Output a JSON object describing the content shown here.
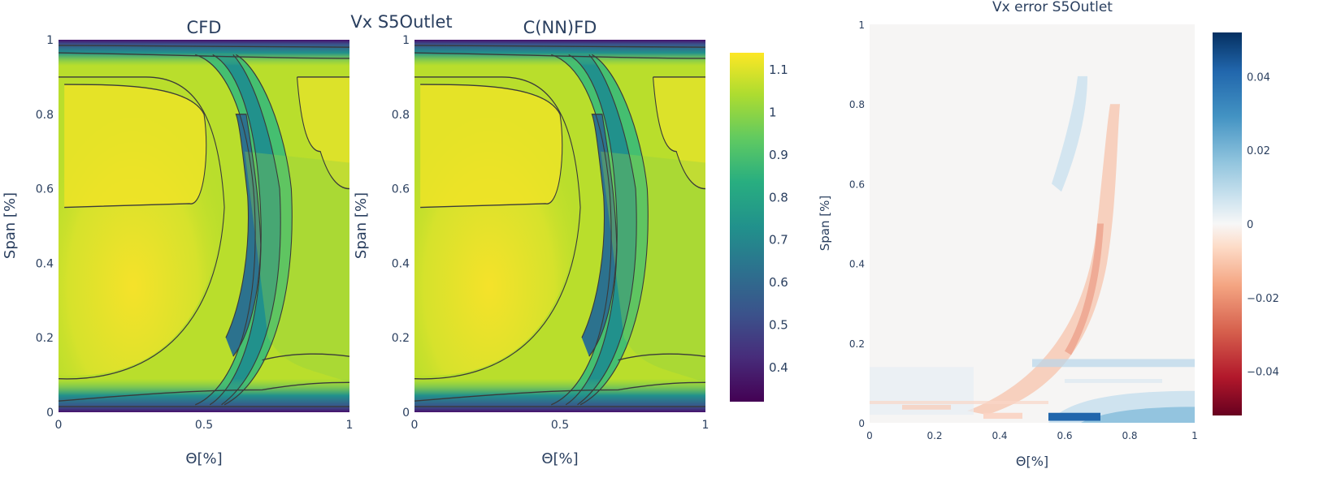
{
  "figure_title": "Vx S5Outlet",
  "chart_data": [
    {
      "type": "heatmap",
      "title": "CFD",
      "xlabel": "Θ[%]",
      "ylabel": "Span [%]",
      "xlim": [
        0,
        1
      ],
      "ylim": [
        0,
        1
      ],
      "x_ticks": [
        "0",
        "0.5",
        "1"
      ],
      "y_ticks": [
        "0",
        "0.2",
        "0.4",
        "0.6",
        "0.8",
        "1"
      ],
      "field": "Vx",
      "colormap": "viridis",
      "contours": true
    },
    {
      "type": "heatmap",
      "title": "C(NN)FD",
      "xlabel": "Θ[%]",
      "ylabel": "Span [%]",
      "xlim": [
        0,
        1
      ],
      "ylim": [
        0,
        1
      ],
      "x_ticks": [
        "0",
        "0.5",
        "1"
      ],
      "y_ticks": [
        "0",
        "0.2",
        "0.4",
        "0.6",
        "0.8",
        "1"
      ],
      "field": "Vx",
      "colormap": "viridis",
      "contours": true
    },
    {
      "type": "heatmap",
      "title": "Vx error S5Outlet",
      "xlabel": "Θ[%]",
      "ylabel": "Span [%]",
      "xlim": [
        0,
        1
      ],
      "ylim": [
        0,
        1
      ],
      "x_ticks": [
        "0",
        "0.2",
        "0.4",
        "0.6",
        "0.8",
        "1"
      ],
      "y_ticks": [
        "0",
        "0.2",
        "0.4",
        "0.6",
        "0.8",
        "1"
      ],
      "field": "Vx error",
      "colormap": "RdBu",
      "contours": false
    }
  ],
  "colorbars": [
    {
      "range": [
        0.32,
        1.14
      ],
      "colormap": "viridis",
      "ticks": [
        "0.4",
        "0.5",
        "0.6",
        "0.7",
        "0.8",
        "0.9",
        "1",
        "1.1"
      ]
    },
    {
      "range": [
        -0.052,
        0.052
      ],
      "colormap": "RdBu",
      "ticks": [
        "−0.04",
        "−0.02",
        "0",
        "0.02",
        "0.04"
      ]
    }
  ],
  "colors": {
    "text": "#2a3f5f",
    "contour": "#3a3a3a"
  }
}
